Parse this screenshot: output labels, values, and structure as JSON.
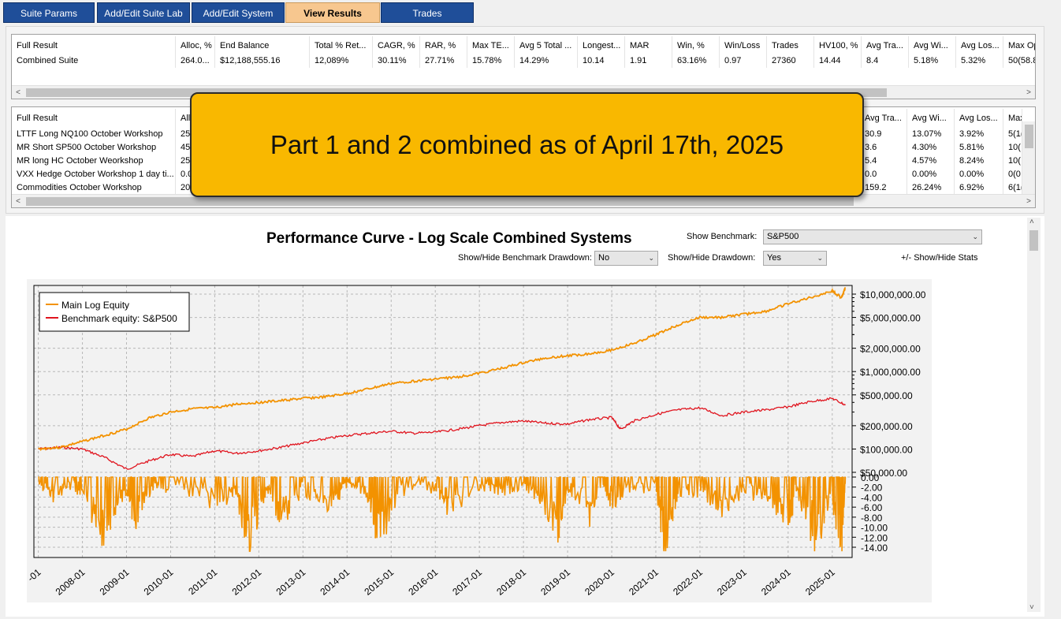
{
  "tabs": [
    {
      "label": "Suite Params",
      "active": false
    },
    {
      "label": "Add/Edit Suite Lab",
      "active": false
    },
    {
      "label": "Add/Edit System",
      "active": false
    },
    {
      "label": "View Results",
      "active": true
    },
    {
      "label": "Trades",
      "active": false
    }
  ],
  "results_table": {
    "columns": [
      "Full Result",
      "Alloc, %",
      "End Balance",
      "Total % Ret...",
      "CAGR, %",
      "RAR, %",
      "Max TE...",
      "Avg 5 Total ...",
      "Longest...",
      "MAR",
      "Win, %",
      "Win/Loss",
      "Trades",
      "HV100, %",
      "Avg Tra...",
      "Avg Wi...",
      "Avg Los...",
      "Max Op"
    ],
    "rows": [
      [
        "Combined Suite",
        "264.0...",
        "$12,188,555.16",
        "12,089%",
        "30.11%",
        "27.71%",
        "15.78%",
        "14.29%",
        "10.14",
        "1.91",
        "63.16%",
        "0.97",
        "27360",
        "14.44",
        "8.4",
        "5.18%",
        "5.32%",
        "50(58.8"
      ]
    ]
  },
  "systems_table": {
    "columns": [
      "Full Result",
      "Allo",
      "Avg Tra...",
      "Avg Wi...",
      "Avg Los...",
      "Max"
    ],
    "rows": [
      [
        "LTTF Long NQ100 October Workshop",
        "25",
        "30.9",
        "13.07%",
        "3.92%",
        "5(1("
      ],
      [
        "MR Short SP500 October Workshop",
        "45",
        "3.6",
        "4.30%",
        "5.81%",
        "10("
      ],
      [
        "MR long HC October Weorkshop",
        "25",
        "5.4",
        "4.57%",
        "8.24%",
        "10("
      ],
      [
        "VXX Hedge October Workshop 1 day ti...",
        "0.0",
        "0.0",
        "0.00%",
        "0.00%",
        "0(0"
      ],
      [
        "Commodities October Workshop",
        "20",
        "159.2",
        "26.24%",
        "6.92%",
        "6(1("
      ]
    ]
  },
  "callout": {
    "text": "Part 1 and 2 combined as of April 17th, 2025"
  },
  "chart_controls": {
    "title": "Performance Curve - Log Scale Combined Systems",
    "show_benchmark_label": "Show Benchmark:",
    "show_benchmark_value": "S&P500",
    "benchmark_drawdown_label": "Show/Hide Benchmark Drawdown:",
    "benchmark_drawdown_value": "No",
    "drawdown_label": "Show/Hide Drawdown:",
    "drawdown_value": "Yes",
    "stats_toggle": "+/- Show/Hide Stats"
  },
  "chart_data": {
    "type": "line",
    "yscale": "log",
    "equity_ticks": [
      "$10,000,000.00",
      "$5,000,000.00",
      "$2,000,000.00",
      "$1,000,000.00",
      "$500,000.00",
      "$200,000.00",
      "$100,000.00",
      "$50,000.00"
    ],
    "drawdown_ticks": [
      "0.00",
      "-2.00",
      "-4.00",
      "-6.00",
      "-8.00",
      "-10.00",
      "-12.00",
      "-14.00"
    ],
    "x_ticks": [
      "-01",
      "2008-01",
      "2009-01",
      "2010-01",
      "2011-01",
      "2012-01",
      "2013-01",
      "2014-01",
      "2015-01",
      "2016-01",
      "2017-01",
      "2018-01",
      "2019-01",
      "2020-01",
      "2021-01",
      "2022-01",
      "2023-01",
      "2024-01",
      "2025-01"
    ],
    "legend": [
      "Main Log Equity",
      "Benchmark equity: S&P500"
    ],
    "colors": {
      "equity": "#f39200",
      "benchmark": "#e0141e"
    },
    "series": [
      {
        "name": "Main Log Equity",
        "x": [
          2007.0,
          2007.5,
          2008.0,
          2008.5,
          2009.0,
          2009.5,
          2010.0,
          2010.5,
          2011.0,
          2011.5,
          2012.0,
          2012.5,
          2013.0,
          2013.5,
          2014.0,
          2014.5,
          2015.0,
          2015.5,
          2016.0,
          2016.5,
          2017.0,
          2017.5,
          2018.0,
          2018.5,
          2019.0,
          2019.5,
          2020.0,
          2020.5,
          2021.0,
          2021.5,
          2022.0,
          2022.5,
          2023.0,
          2023.5,
          2024.0,
          2024.5,
          2025.0,
          2025.2,
          2025.3
        ],
        "y": [
          100000,
          105000,
          125000,
          150000,
          180000,
          250000,
          300000,
          330000,
          340000,
          380000,
          400000,
          420000,
          450000,
          470000,
          520000,
          600000,
          700000,
          750000,
          800000,
          850000,
          950000,
          1100000,
          1300000,
          1500000,
          1600000,
          1700000,
          1900000,
          2300000,
          3000000,
          4000000,
          5000000,
          5000000,
          5500000,
          6000000,
          7500000,
          9000000,
          11000000,
          9000000,
          12000000
        ]
      },
      {
        "name": "Benchmark equity: S&P500",
        "x": [
          2007.0,
          2007.5,
          2008.0,
          2008.5,
          2009.0,
          2009.5,
          2010.0,
          2010.5,
          2011.0,
          2011.5,
          2012.0,
          2012.5,
          2013.0,
          2013.5,
          2014.0,
          2014.5,
          2015.0,
          2015.5,
          2016.0,
          2016.5,
          2017.0,
          2017.5,
          2018.0,
          2018.5,
          2019.0,
          2019.5,
          2020.0,
          2020.2,
          2020.5,
          2021.0,
          2021.5,
          2022.0,
          2022.5,
          2023.0,
          2023.5,
          2024.0,
          2024.5,
          2025.0,
          2025.3
        ],
        "y": [
          100000,
          105000,
          100000,
          78000,
          55000,
          70000,
          85000,
          80000,
          95000,
          88000,
          95000,
          105000,
          120000,
          135000,
          150000,
          160000,
          170000,
          160000,
          165000,
          180000,
          200000,
          220000,
          230000,
          215000,
          210000,
          240000,
          255000,
          180000,
          230000,
          280000,
          320000,
          340000,
          270000,
          300000,
          320000,
          350000,
          410000,
          450000,
          370000
        ]
      },
      {
        "name": "Drawdown",
        "x": [
          2007.0,
          2007.3,
          2007.8,
          2008.0,
          2008.5,
          2009.0,
          2009.2,
          2009.6,
          2010.0,
          2011.0,
          2011.5,
          2011.8,
          2012.2,
          2012.5,
          2013.0,
          2013.6,
          2014.0,
          2014.4,
          2014.7,
          2015.2,
          2016.0,
          2016.3,
          2017.0,
          2017.5,
          2018.0,
          2018.3,
          2018.8,
          2019.0,
          2019.5,
          2019.8,
          2020.0,
          2020.3,
          2021.0,
          2021.2,
          2021.5,
          2022.0,
          2022.5,
          2023.0,
          2023.5,
          2024.0,
          2024.2,
          2024.6,
          2025.0,
          2025.2,
          2025.3
        ],
        "y": [
          0,
          -3,
          -1,
          -3,
          -12,
          -2,
          -9,
          -1,
          -2,
          -4,
          -3,
          -15,
          -1,
          -9,
          -2,
          -5,
          -1,
          -2,
          -12,
          -2,
          -1,
          -6,
          -1,
          -2,
          -1,
          -3,
          -10,
          -2,
          -7,
          -1,
          -5,
          -2,
          -1,
          -14,
          -3,
          -2,
          -6,
          -2,
          -3,
          -9,
          -2,
          -12,
          -4,
          -15,
          0
        ]
      }
    ]
  }
}
